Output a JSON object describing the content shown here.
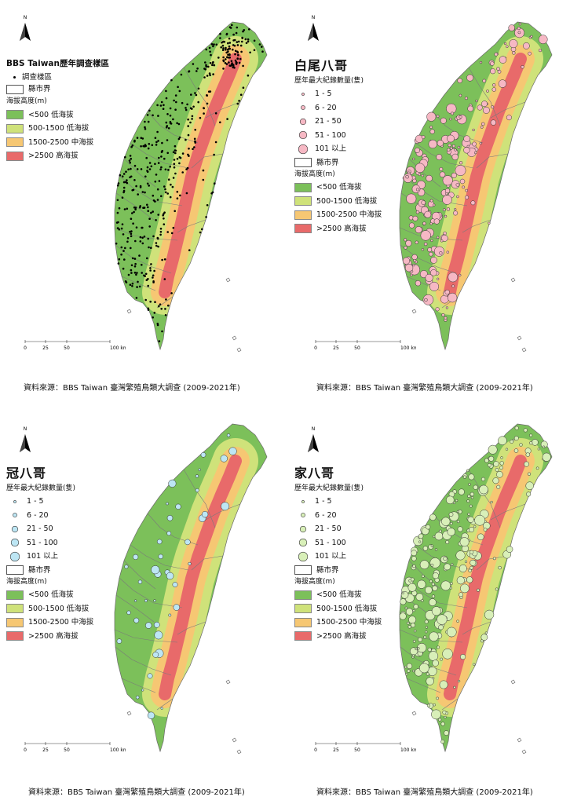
{
  "north_label": "N",
  "panels": [
    {
      "id": "survey",
      "title": "BBS Taiwan歷年調查樣區",
      "point_label": "調查樣區",
      "county_label": "縣市界",
      "elevation_title": "海拔高度(m)",
      "source": "資料來源：BBS Taiwan 臺灣繁殖鳥類大調查 (2009-2021年)"
    },
    {
      "id": "javan",
      "title": "白尾八哥",
      "count_title": "歷年最大紀錄數量(隻)",
      "county_label": "縣市界",
      "elevation_title": "海拔高度(m)",
      "color": "#f6b8c4",
      "source": "資料來源：BBS Taiwan 臺灣繁殖鳥類大調查 (2009-2021年)"
    },
    {
      "id": "crested",
      "title": "冠八哥",
      "count_title": "歷年最大紀錄數量(隻)",
      "county_label": "縣市界",
      "elevation_title": "海拔高度(m)",
      "color": "#bde6f4",
      "source": "資料來源：BBS Taiwan 臺灣繁殖鳥類大調查 (2009-2021年)"
    },
    {
      "id": "common",
      "title": "家八哥",
      "count_title": "歷年最大紀錄數量(隻)",
      "county_label": "縣市界",
      "elevation_title": "海拔高度(m)",
      "color": "#d8efb8",
      "source": "資料來源：BBS Taiwan 臺灣繁殖鳥類大調查 (2009-2021年)"
    }
  ],
  "count_classes": [
    "1 - 5",
    "6 - 20",
    "21 - 50",
    "51 - 100",
    "101 以上"
  ],
  "elevation_classes": [
    {
      "label": "<500 低海拔",
      "color": "#7cc05a"
    },
    {
      "label": "500-1500 低海拔",
      "color": "#cfe27a"
    },
    {
      "label": "1500-2500 中海拔",
      "color": "#f6c773"
    },
    {
      "label": ">2500 高海拔",
      "color": "#e86a6a"
    }
  ],
  "scale": {
    "ticks": [
      "0",
      "25",
      "50",
      "100 km"
    ]
  }
}
